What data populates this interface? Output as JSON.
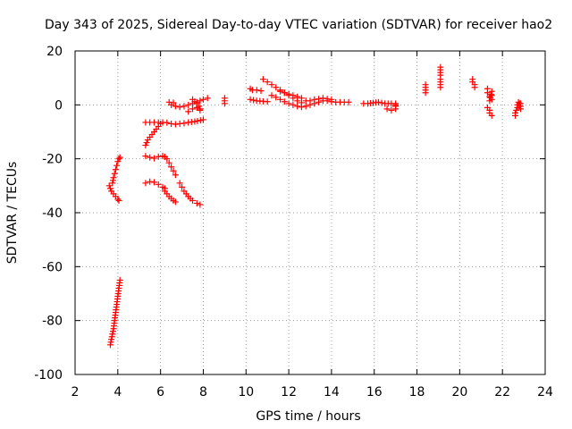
{
  "chart_data": {
    "type": "scatter",
    "title": "Day 343 of 2025, Sidereal Day-to-day VTEC variation (SDTVAR) for receiver hao2",
    "xlabel": "GPS time / hours",
    "ylabel": "SDTVAR / TECUs",
    "xlim": [
      2,
      24
    ],
    "ylim": [
      -100,
      20
    ],
    "xticks": [
      2,
      4,
      6,
      8,
      10,
      12,
      14,
      16,
      18,
      20,
      22,
      24
    ],
    "yticks": [
      -100,
      -80,
      -60,
      -40,
      -20,
      0,
      20
    ],
    "xtick_labels": [
      "2",
      "4",
      "6",
      "8",
      "10",
      "12",
      "14",
      "16",
      "18",
      "20",
      "22",
      "24"
    ],
    "ytick_labels": [
      "-100",
      "-80",
      "-60",
      "-40",
      "-20",
      "0",
      "20"
    ],
    "grid": true,
    "marker": "+",
    "color": "#ff0000",
    "series": [
      {
        "name": "SDTVAR",
        "segments": [
          [
            [
              3.65,
              -89
            ],
            [
              3.7,
              -87
            ],
            [
              3.75,
              -85
            ],
            [
              3.8,
              -83
            ],
            [
              3.85,
              -80
            ],
            [
              3.9,
              -77
            ],
            [
              3.95,
              -74
            ],
            [
              4.0,
              -71
            ],
            [
              4.05,
              -68
            ],
            [
              4.1,
              -65
            ]
          ],
          [
            [
              3.6,
              -30
            ],
            [
              3.65,
              -31
            ],
            [
              3.7,
              -32
            ],
            [
              3.8,
              -33
            ],
            [
              3.9,
              -34
            ],
            [
              4.0,
              -35
            ],
            [
              4.05,
              -35.5
            ]
          ],
          [
            [
              3.75,
              -29
            ],
            [
              3.8,
              -27
            ],
            [
              3.85,
              -25.5
            ],
            [
              3.9,
              -24
            ],
            [
              3.95,
              -22.5
            ],
            [
              4.0,
              -21
            ],
            [
              4.05,
              -20
            ],
            [
              4.1,
              -19.5
            ]
          ],
          [
            [
              5.3,
              -15
            ],
            [
              5.4,
              -13
            ],
            [
              5.5,
              -12
            ],
            [
              5.6,
              -11
            ],
            [
              5.7,
              -10
            ],
            [
              5.8,
              -9
            ],
            [
              5.9,
              -8
            ],
            [
              6.0,
              -7
            ]
          ],
          [
            [
              5.3,
              -6.5
            ],
            [
              5.5,
              -6.5
            ],
            [
              5.7,
              -6.5
            ],
            [
              5.9,
              -6.5
            ],
            [
              6.1,
              -6.5
            ],
            [
              6.3,
              -6.6
            ]
          ],
          [
            [
              5.3,
              -19
            ],
            [
              5.5,
              -19.5
            ],
            [
              5.7,
              -19.8
            ],
            [
              5.9,
              -19.2
            ],
            [
              6.1,
              -19
            ],
            [
              6.2,
              -19.3
            ]
          ],
          [
            [
              6.3,
              -20
            ],
            [
              6.4,
              -21.5
            ],
            [
              6.5,
              -23
            ],
            [
              6.6,
              -24.5
            ],
            [
              6.7,
              -26
            ]
          ],
          [
            [
              5.3,
              -29
            ],
            [
              5.5,
              -28.5
            ],
            [
              5.7,
              -28.7
            ],
            [
              5.9,
              -29.5
            ],
            [
              6.1,
              -30.5
            ],
            [
              6.2,
              -31
            ]
          ],
          [
            [
              6.2,
              -32
            ],
            [
              6.4,
              -34
            ],
            [
              6.6,
              -35.5
            ],
            [
              6.7,
              -36
            ]
          ],
          [
            [
              6.9,
              -29
            ],
            [
              7.0,
              -30.5
            ],
            [
              7.1,
              -32
            ],
            [
              7.3,
              -34
            ],
            [
              7.5,
              -35.5
            ],
            [
              7.7,
              -36.5
            ],
            [
              7.85,
              -37
            ]
          ],
          [
            [
              6.5,
              -7
            ],
            [
              6.7,
              -7.2
            ],
            [
              6.9,
              -7
            ],
            [
              7.1,
              -6.8
            ],
            [
              7.3,
              -6.5
            ],
            [
              7.6,
              -6.2
            ],
            [
              8.0,
              -5.5
            ]
          ],
          [
            [
              6.5,
              0
            ],
            [
              6.7,
              -0.5
            ],
            [
              6.9,
              -0.8
            ],
            [
              7.1,
              -0.5
            ],
            [
              7.3,
              0
            ],
            [
              7.5,
              0.5
            ],
            [
              7.7,
              1
            ],
            [
              7.85,
              1.5
            ],
            [
              8.0,
              2
            ],
            [
              8.2,
              2.5
            ]
          ],
          [
            [
              7.3,
              -2.5
            ],
            [
              7.5,
              -1.5
            ],
            [
              7.7,
              -1
            ],
            [
              7.85,
              -1.5
            ]
          ],
          [
            [
              7.5,
              2
            ],
            [
              7.6,
              1.2
            ],
            [
              7.7,
              0.5
            ],
            [
              7.8,
              -0.5
            ],
            [
              7.85,
              -2
            ]
          ],
          [
            [
              6.4,
              1
            ],
            [
              6.6,
              0.8
            ]
          ],
          [
            [
              9.0,
              2.5
            ],
            [
              9.0,
              1.5
            ],
            [
              9.0,
              0.5
            ]
          ],
          [
            [
              10.2,
              6
            ],
            [
              10.3,
              5.5
            ],
            [
              10.5,
              5.5
            ],
            [
              10.7,
              5.2
            ]
          ],
          [
            [
              10.2,
              2
            ],
            [
              10.5,
              1.5
            ],
            [
              10.8,
              1.3
            ],
            [
              11.0,
              1.2
            ]
          ],
          [
            [
              10.8,
              9.5
            ],
            [
              11.0,
              8.5
            ],
            [
              11.2,
              7.5
            ],
            [
              11.4,
              6.5
            ],
            [
              11.6,
              5.5
            ],
            [
              11.8,
              4.5
            ],
            [
              12.0,
              3.5
            ],
            [
              12.2,
              2.5
            ],
            [
              12.4,
              1.5
            ],
            [
              12.6,
              0.8
            ]
          ],
          [
            [
              11.2,
              3.5
            ],
            [
              11.4,
              2.8
            ],
            [
              11.6,
              2.0
            ],
            [
              11.8,
              1.2
            ],
            [
              12.0,
              0.5
            ],
            [
              12.2,
              0
            ],
            [
              12.4,
              -0.5
            ],
            [
              12.6,
              -0.8
            ]
          ],
          [
            [
              11.6,
              5
            ],
            [
              11.8,
              4.5
            ],
            [
              12.0,
              4
            ],
            [
              12.2,
              3.5
            ],
            [
              12.4,
              3
            ],
            [
              12.6,
              2.5
            ]
          ],
          [
            [
              12.8,
              -0.5
            ],
            [
              13.0,
              0
            ],
            [
              13.2,
              0.5
            ],
            [
              13.4,
              1
            ],
            [
              13.6,
              1.5
            ],
            [
              13.8,
              1.5
            ],
            [
              14.0,
              1.2
            ],
            [
              14.2,
              1
            ],
            [
              14.4,
              1
            ],
            [
              14.6,
              1
            ],
            [
              14.8,
              1
            ]
          ],
          [
            [
              12.8,
              1.5
            ],
            [
              13.0,
              1.5
            ],
            [
              13.2,
              2
            ],
            [
              13.4,
              2.2
            ],
            [
              13.6,
              2.5
            ],
            [
              13.8,
              2.2
            ],
            [
              14.0,
              2
            ]
          ],
          [
            [
              15.5,
              0.5
            ],
            [
              15.7,
              0.5
            ],
            [
              16.2,
              1
            ],
            [
              16.5,
              0.5
            ],
            [
              16.8,
              0.5
            ],
            [
              17.0,
              0
            ]
          ],
          [
            [
              16.6,
              -1.5
            ],
            [
              16.8,
              -2
            ],
            [
              17.0,
              -1.5
            ],
            [
              17.0,
              0.5
            ],
            [
              17.0,
              -0.5
            ]
          ],
          [
            [
              18.4,
              7.5
            ],
            [
              18.4,
              6.5
            ],
            [
              18.4,
              5.5
            ],
            [
              18.4,
              4.5
            ]
          ],
          [
            [
              19.1,
              14
            ],
            [
              19.1,
              11
            ],
            [
              19.1,
              9.5
            ],
            [
              19.1,
              6.5
            ]
          ],
          [
            [
              20.6,
              9.5
            ],
            [
              20.6,
              8.5
            ],
            [
              20.7,
              7.5
            ],
            [
              20.7,
              6.5
            ]
          ],
          [
            [
              21.3,
              6
            ],
            [
              21.3,
              4.5
            ],
            [
              21.4,
              3
            ],
            [
              21.4,
              1.5
            ],
            [
              21.5,
              5
            ],
            [
              21.5,
              3.5
            ],
            [
              21.5,
              2
            ]
          ],
          [
            [
              21.3,
              -1
            ],
            [
              21.4,
              -2
            ],
            [
              21.4,
              -3
            ],
            [
              21.5,
              -4
            ]
          ],
          [
            [
              22.6,
              -4
            ],
            [
              22.6,
              -3
            ],
            [
              22.65,
              -2
            ],
            [
              22.7,
              -1
            ],
            [
              22.7,
              0
            ],
            [
              22.75,
              1
            ],
            [
              22.8,
              0.5
            ],
            [
              22.8,
              -0.5
            ],
            [
              22.85,
              -1.5
            ],
            [
              22.85,
              0.5
            ]
          ]
        ]
      }
    ]
  }
}
